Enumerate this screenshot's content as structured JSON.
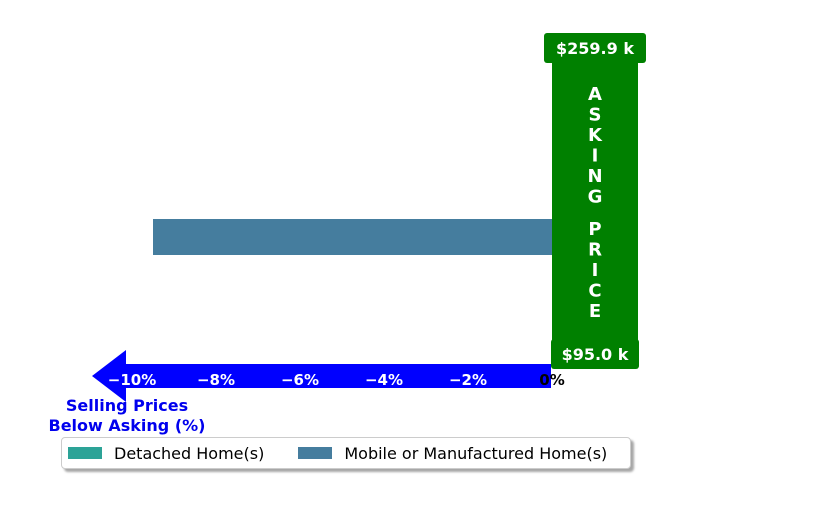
{
  "chart_data": {
    "type": "bar",
    "orientation": "horizontal",
    "title": "",
    "xlabel": "Selling Prices\nBelow Asking (%)",
    "ylabel": "",
    "xlim": [
      -12.5,
      1.2
    ],
    "xticks": [
      -10,
      -8,
      -6,
      -4,
      -2,
      0
    ],
    "xtick_labels": [
      "−10%",
      "−8%",
      "−6%",
      "−4%",
      "−2%",
      "0%"
    ],
    "grid": false,
    "legend_position": "bottom",
    "series": [
      {
        "name": "Detached Home(s)",
        "color": "#2ca397",
        "values": [
          0.2
        ]
      },
      {
        "name": "Mobile or Manufactured Home(s)",
        "color": "#457d9e",
        "values": [
          -9.5
        ]
      }
    ],
    "annotations": {
      "asking_price_label": "ASKING PRICE",
      "asking_price_color": "#008000",
      "top_price": "$259.9 k",
      "bottom_price": "$95.0 k"
    },
    "arrow_color": "#0000ff"
  }
}
